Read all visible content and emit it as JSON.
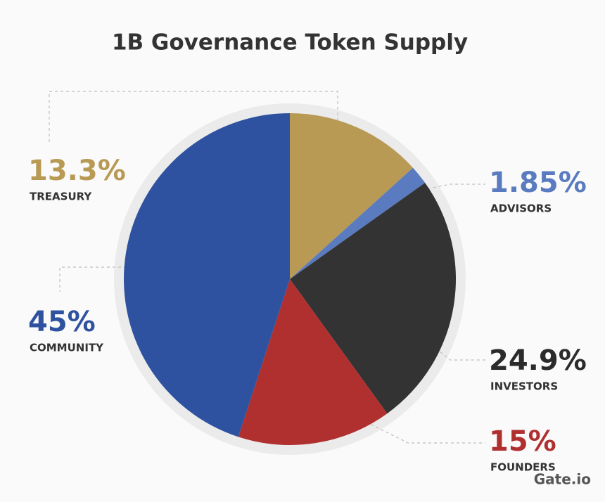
{
  "chart_data": {
    "type": "pie",
    "title": "1B Governance Token Supply",
    "categories": [
      "TREASURY",
      "ADVISORS",
      "INVESTORS",
      "FOUNDERS",
      "COMMUNITY"
    ],
    "values": [
      13.3,
      1.85,
      24.9,
      15,
      45
    ],
    "value_labels": [
      "13.3%",
      "1.85%",
      "24.9%",
      "15%",
      "45%"
    ],
    "colors": [
      "#b89a55",
      "#5a7bbf",
      "#333333",
      "#b03030",
      "#2f52a0"
    ]
  },
  "brand": "Gate.io"
}
